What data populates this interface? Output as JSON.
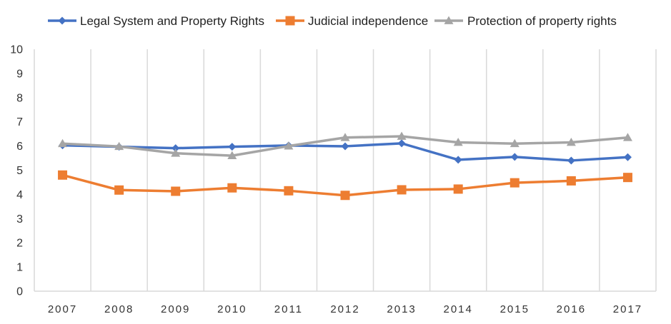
{
  "chart_data": {
    "type": "line",
    "title": "",
    "xlabel": "",
    "ylabel": "",
    "categories": [
      "2007",
      "2008",
      "2009",
      "2010",
      "2011",
      "2012",
      "2013",
      "2014",
      "2015",
      "2016",
      "2017"
    ],
    "ylim": [
      0,
      10
    ],
    "yticks": [
      "0",
      "1",
      "2",
      "3",
      "4",
      "5",
      "6",
      "7",
      "8",
      "9",
      "10"
    ],
    "grid": "vertical",
    "legend_position": "top",
    "series": [
      {
        "name": "Legal System and Property Rights",
        "color": "#4472C4",
        "marker": "diamond",
        "values": [
          6.03,
          5.97,
          5.91,
          5.97,
          6.02,
          5.99,
          6.11,
          5.43,
          5.55,
          5.4,
          5.54
        ]
      },
      {
        "name": "Judicial independence",
        "color": "#ED7D31",
        "marker": "square",
        "values": [
          4.8,
          4.18,
          4.13,
          4.27,
          4.15,
          3.96,
          4.19,
          4.22,
          4.48,
          4.56,
          4.7
        ]
      },
      {
        "name": "Protection of property rights",
        "color": "#A5A5A5",
        "marker": "triangle",
        "values": [
          6.1,
          5.98,
          5.7,
          5.6,
          6.0,
          6.35,
          6.4,
          6.15,
          6.1,
          6.15,
          6.35
        ]
      }
    ]
  }
}
